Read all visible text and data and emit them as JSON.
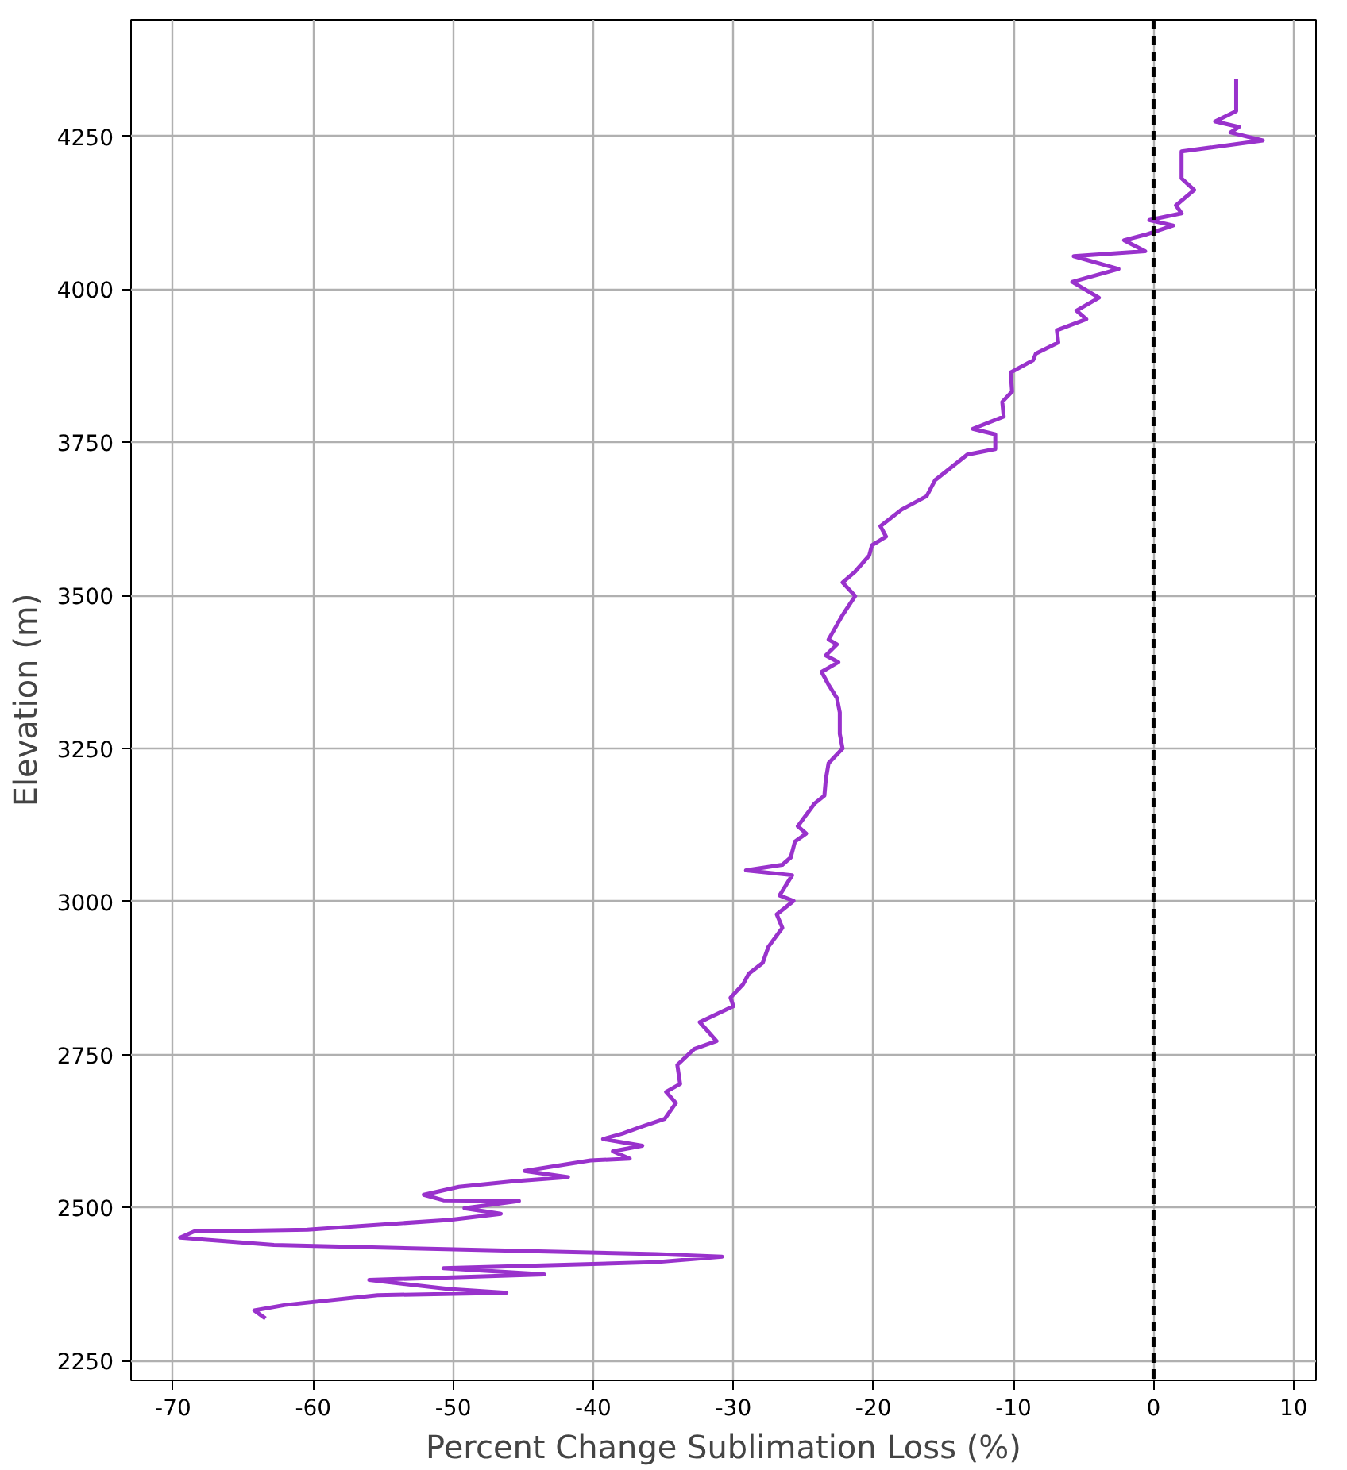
{
  "chart_data": {
    "type": "line",
    "xlabel": "Percent Change Sublimation Loss (%)",
    "ylabel": "Elevation (m)",
    "xlim": [
      -73,
      11.6
    ],
    "ylim": [
      2218,
      4440
    ],
    "xticks": [
      -70,
      -60,
      -50,
      -40,
      -30,
      -20,
      -10,
      0,
      10
    ],
    "yticks": [
      2250,
      2500,
      2750,
      3000,
      3250,
      3500,
      3750,
      4000,
      4250
    ],
    "grid": true,
    "line_style": "solid",
    "marker": "none",
    "ref_lines": [
      {
        "axis": "x",
        "value": 0,
        "color": "#000000",
        "line_style": "dashed"
      }
    ],
    "series": [
      {
        "color": "#9932cc",
        "x": [
          5.9,
          5.9,
          4.4,
          6.1,
          5.5,
          7.8,
          2.0,
          2.0,
          2.9,
          1.6,
          2.0,
          -0.3,
          1.4,
          -0.6,
          -2.1,
          -0.6,
          -5.7,
          -2.5,
          -5.8,
          -3.9,
          -5.5,
          -4.8,
          -6.9,
          -6.8,
          -8.4,
          -8.6,
          -10.2,
          -10.1,
          -10.8,
          -10.7,
          -12.9,
          -11.3,
          -11.3,
          -13.3,
          -15.6,
          -16.2,
          -18.0,
          -19.5,
          -19.1,
          -20.1,
          -20.3,
          -21.3,
          -22.2,
          -21.3,
          -22.2,
          -23.2,
          -22.6,
          -23.4,
          -22.5,
          -23.7,
          -23.2,
          -22.6,
          -22.4,
          -22.4,
          -22.2,
          -23.2,
          -23.4,
          -23.5,
          -24.2,
          -25.4,
          -24.8,
          -25.6,
          -25.9,
          -26.5,
          -29.1,
          -25.8,
          -26.7,
          -25.7,
          -26.9,
          -26.5,
          -27.5,
          -27.9,
          -28.9,
          -29.3,
          -30.2,
          -30.0,
          -32.4,
          -31.2,
          -32.8,
          -34.0,
          -33.8,
          -34.8,
          -34.1,
          -34.9,
          -36.7,
          -37.9,
          -39.3,
          -36.5,
          -38.6,
          -37.4,
          -40.2,
          -44.9,
          -41.8,
          -45.7,
          -49.6,
          -52.1,
          -50.7,
          -45.3,
          -49.2,
          -46.6,
          -50.3,
          -60.4,
          -68.5,
          -69.5,
          -62.8,
          -35.5,
          -30.8,
          -35.5,
          -50.7,
          -43.5,
          -56.0,
          -50.3,
          -46.2,
          -55.4,
          -62.0,
          -64.2,
          -63.4
        ],
        "values": [
          4344,
          4291,
          4274,
          4265,
          4256,
          4243,
          4225,
          4181,
          4162,
          4137,
          4124,
          4113,
          4104,
          4089,
          4080,
          4062,
          4054,
          4033,
          4012,
          3986,
          3965,
          3951,
          3933,
          3913,
          3895,
          3884,
          3864,
          3833,
          3816,
          3792,
          3772,
          3763,
          3739,
          3730,
          3688,
          3662,
          3640,
          3613,
          3596,
          3582,
          3565,
          3539,
          3521,
          3499,
          3468,
          3428,
          3420,
          3402,
          3391,
          3375,
          3354,
          3332,
          3309,
          3274,
          3250,
          3226,
          3199,
          3173,
          3160,
          3123,
          3111,
          3098,
          3072,
          3060,
          3051,
          3043,
          3010,
          3001,
          2979,
          2957,
          2926,
          2900,
          2882,
          2865,
          2843,
          2829,
          2803,
          2772,
          2759,
          2733,
          2702,
          2689,
          2671,
          2645,
          2631,
          2621,
          2612,
          2601,
          2592,
          2580,
          2577,
          2560,
          2550,
          2543,
          2534,
          2521,
          2512,
          2511,
          2499,
          2490,
          2480,
          2464,
          2461,
          2451,
          2439,
          2424,
          2420,
          2411,
          2401,
          2391,
          2382,
          2367,
          2361,
          2357,
          2341,
          2332,
          2319
        ]
      }
    ]
  }
}
